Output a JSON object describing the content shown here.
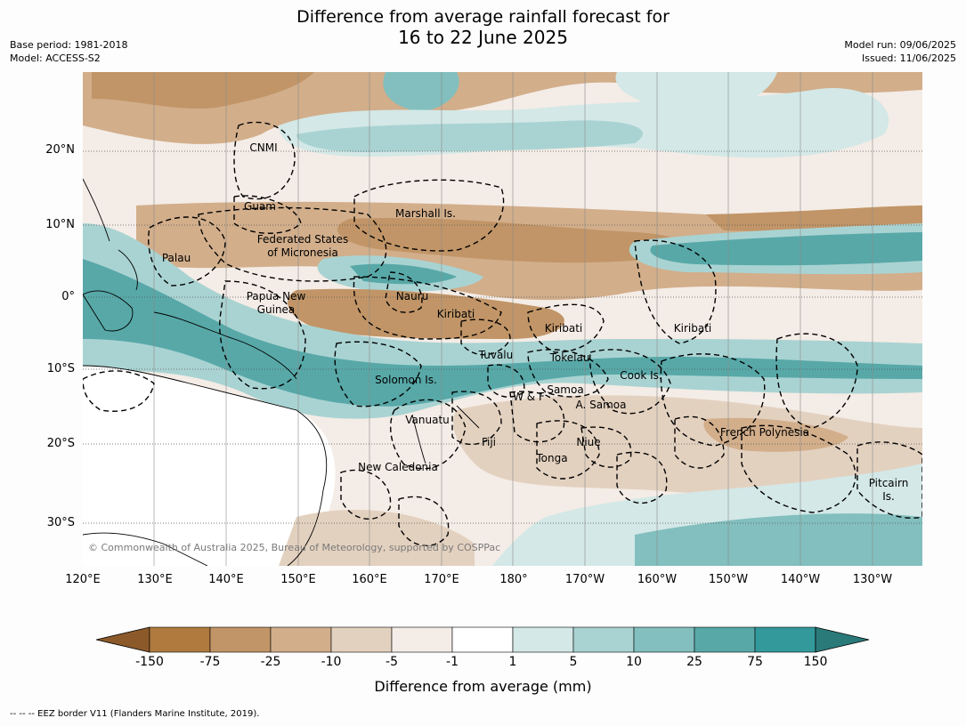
{
  "title_line1": "Difference from average rainfall forecast for",
  "title_line2": "16 to 22 June 2025",
  "meta_left": [
    "Base period: 1981-2018",
    "Model: ACCESS-S2"
  ],
  "meta_right": [
    "Model run: 09/06/2025",
    "Issued: 11/06/2025"
  ],
  "lat_labels": [
    "20°N",
    "10°N",
    "0°",
    "10°S",
    "20°S",
    "30°S"
  ],
  "lon_labels": [
    "120°E",
    "130°E",
    "140°E",
    "150°E",
    "160°E",
    "170°E",
    "180°",
    "170°W",
    "160°W",
    "150°W",
    "140°W",
    "130°W"
  ],
  "places": {
    "cnmi": "CNMI",
    "guam": "Guam",
    "marshall": "Marshall Is.",
    "fsm1": "Federated States",
    "fsm2": "of Micronesia",
    "palau": "Palau",
    "png1": "Papua New",
    "png2": "Guinea",
    "nauru": "Nauru",
    "kiribati_w": "Kiribati",
    "kiribati_c": "Kiribati",
    "kiribati_e": "Kiribati",
    "tuvalu": "Tuvalu",
    "tokelau": "Tokelau",
    "solomon": "Solomon Is.",
    "cook": "Cook Is.",
    "wf": "W & F",
    "samoa": "Samoa",
    "asamoa": "A. Samoa",
    "vanuatu": "Vanuatu",
    "fiji": "Fiji",
    "niue": "Niue",
    "tonga": "Tonga",
    "frpoly": "French Polynesia",
    "newcal": "New Caledonia",
    "pitcairn1": "Pitcairn",
    "pitcairn2": "Is."
  },
  "copyright": "© Commonwealth of Australia 2025, Bureau of Meteorology, supported by COSPPac",
  "colorbar": {
    "ticks": [
      "-150",
      "-75",
      "-25",
      "-10",
      "-5",
      "-1",
      "1",
      "5",
      "10",
      "25",
      "75",
      "150"
    ],
    "colors": [
      "#b07a3e",
      "#c19567",
      "#d2ae8b",
      "#e3d1bf",
      "#f4ece6",
      "#ffffff",
      "#d3e8e7",
      "#a9d3d2",
      "#82bfbe",
      "#58a8a8",
      "#33999a"
    ],
    "under_color": "#8c5a2a",
    "over_color": "#2b7a7a",
    "label": "Difference from average (mm)"
  },
  "eez_note": "--  --  -- EEZ border V11 (Flanders Marine Institute, 2019)."
}
